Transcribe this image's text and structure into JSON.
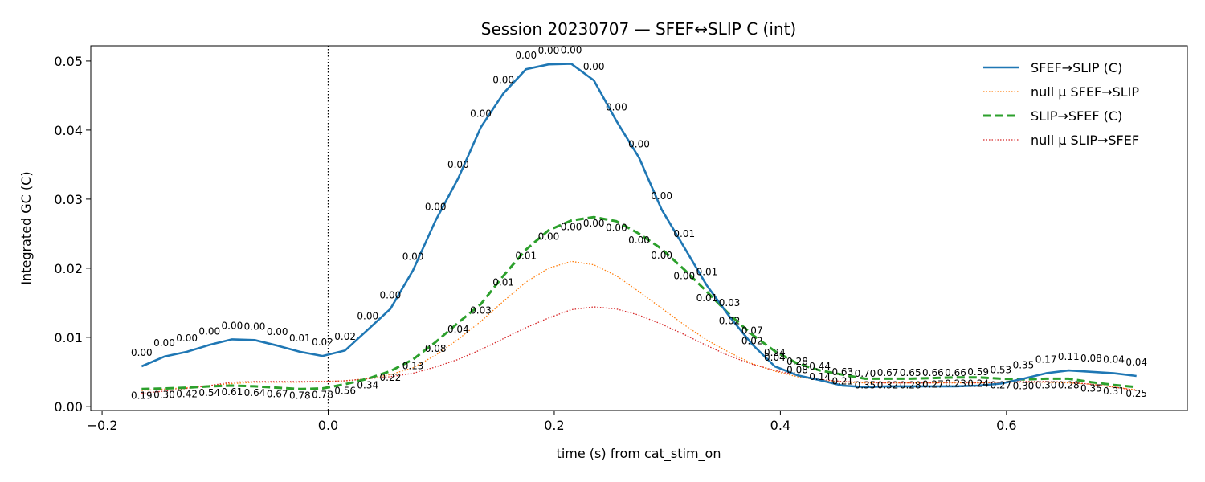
{
  "chart_data": {
    "type": "line",
    "title": "Session 20230707 — SFEF↔SLIP C (int)",
    "xlabel": "time (s) from cat_stim_on",
    "ylabel": "Integrated GC (C)",
    "xlim": [
      -0.21,
      0.76
    ],
    "ylim": [
      -0.0006,
      0.0522
    ],
    "xticks": [
      -0.2,
      0.0,
      0.2,
      0.4,
      0.6
    ],
    "xtick_labels": [
      "−0.2",
      "0.0",
      "0.2",
      "0.4",
      "0.6"
    ],
    "yticks": [
      0.0,
      0.01,
      0.02,
      0.03,
      0.04,
      0.05
    ],
    "ytick_labels": [
      "0.00",
      "0.01",
      "0.02",
      "0.03",
      "0.04",
      "0.05"
    ],
    "grid": false,
    "legend_position": "top-right",
    "event_line_x": 0.0,
    "x": [
      -0.165,
      -0.145,
      -0.125,
      -0.105,
      -0.085,
      -0.065,
      -0.045,
      -0.025,
      -0.005,
      0.015,
      0.035,
      0.055,
      0.075,
      0.095,
      0.115,
      0.135,
      0.155,
      0.175,
      0.195,
      0.215,
      0.235,
      0.255,
      0.275,
      0.295,
      0.315,
      0.335,
      0.355,
      0.375,
      0.395,
      0.415,
      0.435,
      0.455,
      0.475,
      0.495,
      0.515,
      0.535,
      0.555,
      0.575,
      0.595,
      0.615,
      0.635,
      0.655,
      0.675,
      0.695,
      0.715
    ],
    "series": [
      {
        "name": "SFEF→SLIP (C)",
        "color": "#1f77b4",
        "style": "solid",
        "values": [
          0.0058,
          0.0072,
          0.0079,
          0.0089,
          0.0097,
          0.0096,
          0.0088,
          0.0079,
          0.0073,
          0.0081,
          0.0111,
          0.0141,
          0.0197,
          0.0269,
          0.033,
          0.0404,
          0.0453,
          0.0488,
          0.0495,
          0.0496,
          0.0472,
          0.0413,
          0.036,
          0.0285,
          0.023,
          0.0175,
          0.013,
          0.009,
          0.0058,
          0.0045,
          0.0038,
          0.003,
          0.0028,
          0.0029,
          0.0029,
          0.0029,
          0.0029,
          0.003,
          0.0033,
          0.004,
          0.0048,
          0.0052,
          0.005,
          0.0048,
          0.0044
        ],
        "pvalues": [
          "0.00",
          "0.00",
          "0.00",
          "0.00",
          "0.00",
          "0.00",
          "0.00",
          "0.01",
          "0.02",
          "0.02",
          "0.00",
          "0.00",
          "0.00",
          "0.00",
          "0.00",
          "0.00",
          "0.00",
          "0.00",
          "0.00",
          "0.00",
          "0.00",
          "0.00",
          "0.00",
          "0.00",
          "0.01",
          "0.01",
          "0.03",
          "0.07",
          "0.24",
          "0.28",
          "0.44",
          "0.63",
          "0.70",
          "0.67",
          "0.65",
          "0.66",
          "0.66",
          "0.59",
          "0.53",
          "0.35",
          "0.17",
          "0.11",
          "0.08",
          "0.04",
          "0.04"
        ]
      },
      {
        "name": "null μ SFEF→SLIP",
        "color": "#ff7f0e",
        "style": "dotted",
        "values": [
          0.0023,
          0.0025,
          0.0027,
          0.003,
          0.0033,
          0.0035,
          0.0035,
          0.0035,
          0.0036,
          0.0037,
          0.004,
          0.0046,
          0.0056,
          0.0074,
          0.0097,
          0.0123,
          0.0152,
          0.018,
          0.02,
          0.021,
          0.0205,
          0.0189,
          0.0166,
          0.0142,
          0.0118,
          0.0096,
          0.0078,
          0.0062,
          0.0051,
          0.0043,
          0.0038,
          0.0035,
          0.0034,
          0.0034,
          0.0034,
          0.0034,
          0.0034,
          0.0034,
          0.0035,
          0.0035,
          0.0035,
          0.0034,
          0.0032,
          0.0028,
          0.0024
        ]
      },
      {
        "name": "SLIP→SFEF (C)",
        "color": "#2ca02c",
        "style": "dashed",
        "values": [
          0.0025,
          0.0026,
          0.0027,
          0.0029,
          0.003,
          0.0029,
          0.0027,
          0.0025,
          0.0026,
          0.0032,
          0.004,
          0.0051,
          0.0068,
          0.0093,
          0.0121,
          0.0148,
          0.0189,
          0.0227,
          0.0255,
          0.0269,
          0.0274,
          0.0268,
          0.025,
          0.0228,
          0.0198,
          0.0166,
          0.0133,
          0.0104,
          0.008,
          0.0062,
          0.0052,
          0.0046,
          0.004,
          0.004,
          0.004,
          0.0041,
          0.0042,
          0.0042,
          0.004,
          0.0039,
          0.004,
          0.004,
          0.0035,
          0.0031,
          0.0028
        ],
        "pvalues": [
          "0.19",
          "0.30",
          "0.42",
          "0.54",
          "0.61",
          "0.64",
          "0.67",
          "0.78",
          "0.78",
          "0.56",
          "0.34",
          "0.22",
          "0.13",
          "0.08",
          "0.04",
          "0.03",
          "0.01",
          "0.01",
          "0.00",
          "0.00",
          "0.00",
          "0.00",
          "0.00",
          "0.00",
          "0.00",
          "0.01",
          "0.02",
          "0.02",
          "0.04",
          "0.08",
          "0.14",
          "0.21",
          "0.35",
          "0.32",
          "0.28",
          "0.27",
          "0.23",
          "0.24",
          "0.27",
          "0.30",
          "0.30",
          "0.28",
          "0.35",
          "0.31",
          "0.25"
        ]
      },
      {
        "name": "null μ SLIP→SFEF",
        "color": "#d62728",
        "style": "dotted",
        "values": [
          0.0019,
          0.0022,
          0.0026,
          0.003,
          0.0035,
          0.0036,
          0.0036,
          0.0036,
          0.0036,
          0.0037,
          0.004,
          0.0043,
          0.0048,
          0.0057,
          0.0068,
          0.0082,
          0.0098,
          0.0114,
          0.0128,
          0.014,
          0.0144,
          0.0141,
          0.0132,
          0.0119,
          0.0104,
          0.0088,
          0.0073,
          0.0061,
          0.0052,
          0.0045,
          0.0039,
          0.0036,
          0.0035,
          0.0034,
          0.0034,
          0.0034,
          0.0035,
          0.0034,
          0.0035,
          0.0036,
          0.0036,
          0.0035,
          0.0032,
          0.0028,
          0.0023
        ]
      }
    ]
  }
}
